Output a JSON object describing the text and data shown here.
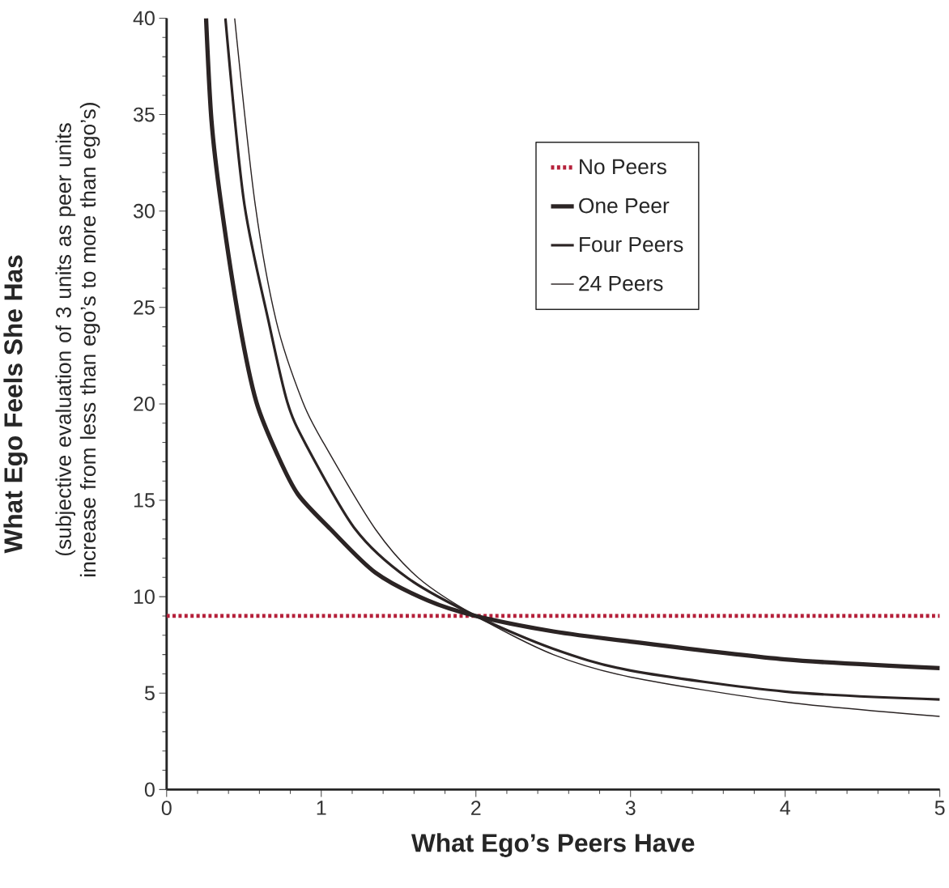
{
  "chart_data": {
    "type": "line",
    "xlabel": "What Ego’s Peers Have",
    "ylabel": "What Ego Feels She Has",
    "annotations": [
      "(subjective evaluation of 3 units as peer units increase from less than ego’s to more than ego’s)"
    ],
    "xlim": [
      0,
      5
    ],
    "ylim": [
      0,
      40
    ],
    "xticks": [
      0,
      1,
      2,
      3,
      4,
      5
    ],
    "yticks": [
      0,
      5,
      10,
      15,
      20,
      25,
      30,
      35,
      40
    ],
    "legend": "top right",
    "grid": false,
    "series": [
      {
        "name": "No Peers",
        "color": "#b5203a",
        "line_style": "dotted",
        "x": [
          0,
          5
        ],
        "values": [
          9,
          9
        ]
      },
      {
        "name": "One Peer",
        "color": "#2b2424",
        "line_style": "solid",
        "x": [
          0.255,
          0.29,
          0.35,
          0.47,
          0.58,
          0.72,
          0.85,
          1.06,
          1.35,
          1.69,
          2,
          2.5,
          3,
          4,
          5
        ],
        "values": [
          40,
          34.7,
          30.5,
          24.25,
          20.1,
          17.3,
          15.3,
          13.5,
          11.25,
          9.8,
          9,
          8.2,
          7.67,
          6.75,
          6.3
        ]
      },
      {
        "name": "Four Peers",
        "color": "#2b2424",
        "line_style": "solid",
        "x": [
          0.38,
          0.5,
          0.66,
          0.78,
          0.9,
          1.22,
          1.56,
          2,
          2.5,
          3,
          4,
          5
        ],
        "values": [
          40,
          30.5,
          24.25,
          20.1,
          17.9,
          13.5,
          10.96,
          9,
          7.3,
          6.17,
          5.08,
          4.67
        ]
      },
      {
        "name": "24 Peers",
        "color": "#2b2424",
        "line_style": "solid",
        "x": [
          0.44,
          0.57,
          0.71,
          0.88,
          1.02,
          1.35,
          1.63,
          2,
          2.5,
          3,
          4,
          5
        ],
        "values": [
          40,
          30.5,
          24.25,
          20.1,
          17.9,
          13.5,
          10.96,
          9,
          7.0,
          5.83,
          4.54,
          3.79
        ]
      }
    ]
  }
}
